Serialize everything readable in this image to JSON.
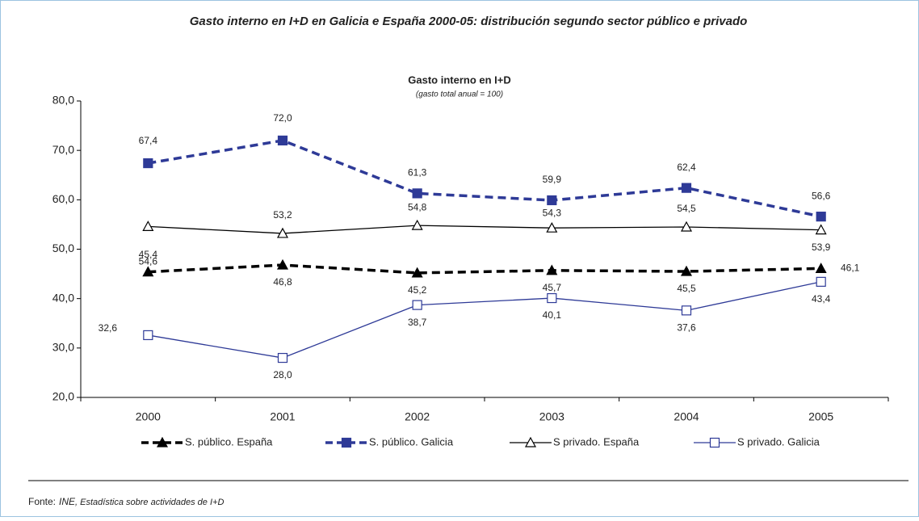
{
  "header": {
    "title": "Gasto interno en I+D en Galicia e España 2000-05: distribución segundo sector público e privado"
  },
  "chart_data": {
    "type": "line",
    "title": "Gasto interno en I+D",
    "subtitle": "(gasto total anual = 100)",
    "categories": [
      "2000",
      "2001",
      "2002",
      "2003",
      "2004",
      "2005"
    ],
    "ylim": [
      20,
      80
    ],
    "yticks": [
      {
        "value": 20,
        "label": "20,0"
      },
      {
        "value": 30,
        "label": "30,0"
      },
      {
        "value": 40,
        "label": "40,0"
      },
      {
        "value": 50,
        "label": "50,0"
      },
      {
        "value": 60,
        "label": "60,0"
      },
      {
        "value": 70,
        "label": "70,0"
      },
      {
        "value": 80,
        "label": "80,0"
      }
    ],
    "series": [
      {
        "name": "S. público. España",
        "color": "#000000",
        "dashed": true,
        "marker": "triangle-filled",
        "values": [
          45.4,
          46.8,
          45.2,
          45.7,
          45.5,
          46.1
        ],
        "value_labels": [
          "45,4",
          "46,8",
          "45,2",
          "45,7",
          "45,5",
          "46,1"
        ]
      },
      {
        "name": "S. público. Galicia",
        "color": "#2e3a97",
        "dashed": true,
        "marker": "square-filled",
        "values": [
          67.4,
          72.0,
          61.3,
          59.9,
          62.4,
          56.6
        ],
        "value_labels": [
          "67,4",
          "72,0",
          "61,3",
          "59,9",
          "62,4",
          "56,6"
        ]
      },
      {
        "name": "S privado. España",
        "color": "#000000",
        "dashed": false,
        "marker": "triangle-open",
        "values": [
          54.6,
          53.2,
          54.8,
          54.3,
          54.5,
          53.9
        ],
        "value_labels": [
          "54,6",
          "53,2",
          "54,8",
          "54,3",
          "54,5",
          "53,9"
        ]
      },
      {
        "name": "S privado. Galicia",
        "color": "#2e3a97",
        "dashed": false,
        "marker": "square-open",
        "values": [
          32.6,
          28.0,
          38.7,
          40.1,
          37.6,
          43.4
        ],
        "value_labels": [
          "32,6",
          "28,0",
          "38,7",
          "40,1",
          "37,6",
          "43,4"
        ]
      }
    ]
  },
  "source": {
    "label": "Fonte:",
    "org": "INE",
    "title": ", Estadística sobre actividades de I+D"
  }
}
